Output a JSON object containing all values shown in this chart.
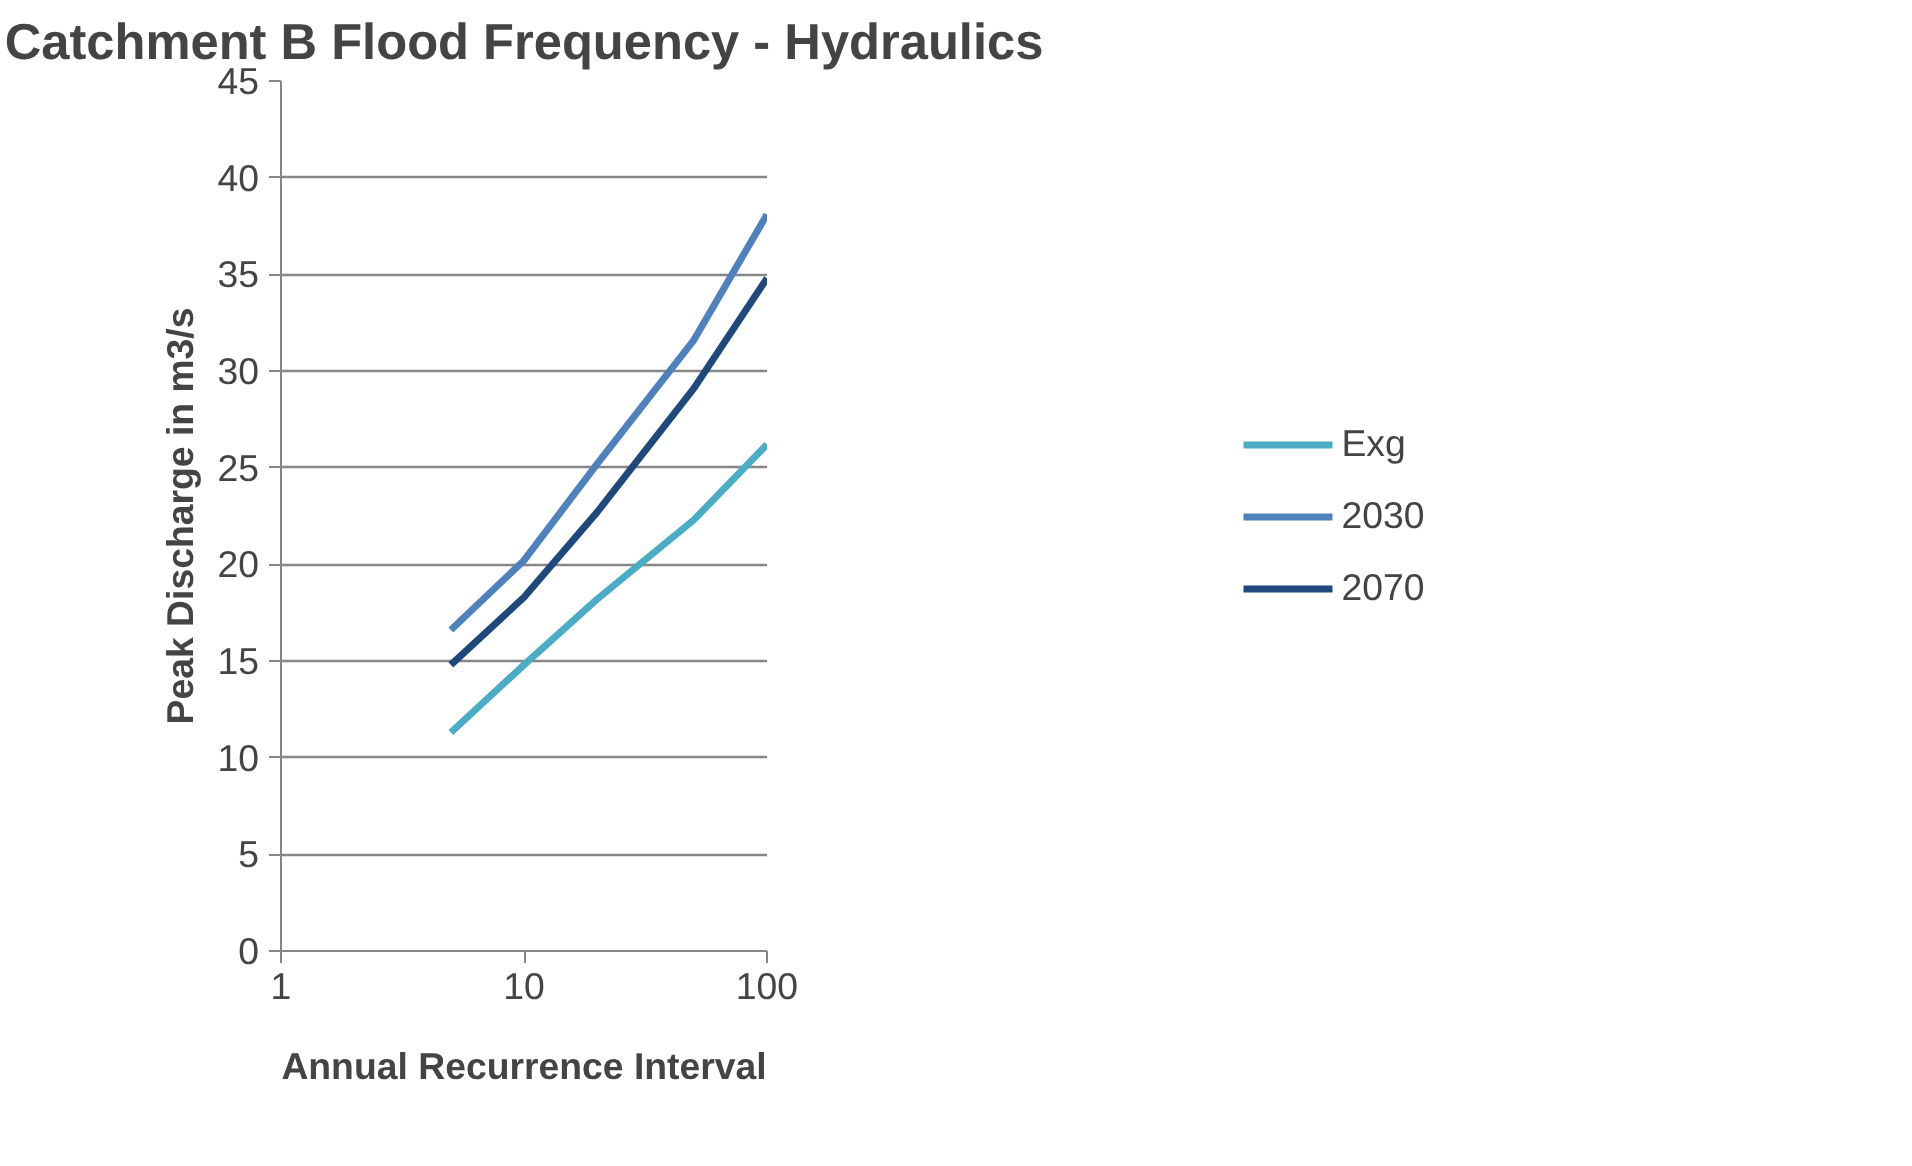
{
  "chart_data": {
    "type": "line",
    "title": "Catchment B Flood Frequency - Hydraulics",
    "xlabel": "Annual Recurrence Interval",
    "ylabel": "Peak Discharge in m3/s",
    "x": [
      5,
      10,
      20,
      50,
      100
    ],
    "log": "x",
    "xlim": [
      1,
      100
    ],
    "xticks": [
      1,
      10,
      100
    ],
    "ylim": [
      0,
      45
    ],
    "yticks": [
      0,
      5,
      10,
      15,
      20,
      25,
      30,
      35,
      40,
      45
    ],
    "grid": "y",
    "legend": "right",
    "marker": "none",
    "series": [
      {
        "name": "Exg",
        "color": "#4bacc6",
        "values": [
          11.3,
          14.8,
          18.2,
          22.3,
          26.2
        ]
      },
      {
        "name": "2030",
        "color": "#4f81bd",
        "values": [
          16.6,
          20.2,
          25.2,
          31.6,
          38.1
        ]
      },
      {
        "name": "2070",
        "color": "#1f497d",
        "values": [
          14.8,
          18.3,
          22.7,
          29.1,
          34.8
        ]
      }
    ]
  }
}
